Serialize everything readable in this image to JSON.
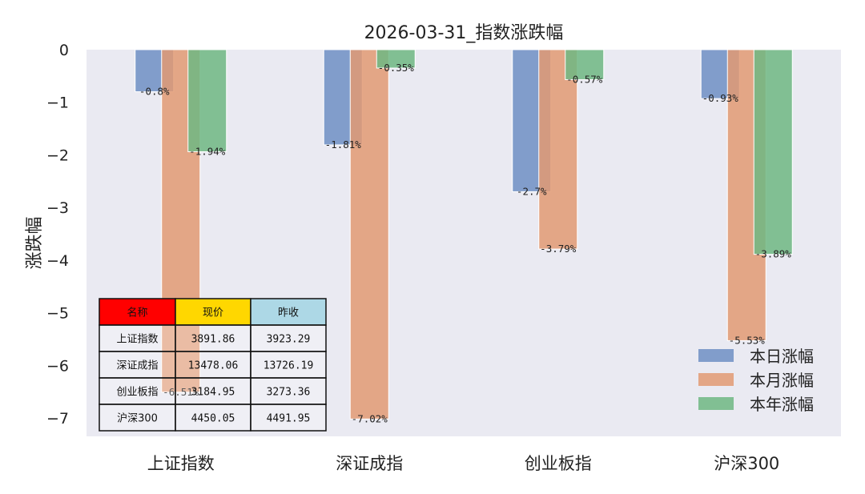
{
  "chart_data": {
    "type": "bar",
    "title": "2026-03-31_指数涨跌幅",
    "xlabel": "",
    "ylabel": "涨跌幅",
    "ylim": [
      -7.35,
      0
    ],
    "yticks": [
      0,
      -1,
      -2,
      -3,
      -4,
      -5,
      -6,
      -7
    ],
    "ytick_labels": [
      "0",
      "−1",
      "−2",
      "−3",
      "−4",
      "−5",
      "−6",
      "−7"
    ],
    "categories": [
      "上证指数",
      "深证成指",
      "创业板指",
      "沪深300"
    ],
    "series": [
      {
        "name": "本日涨幅",
        "color": "#6F8FC4",
        "values": [
          -0.8,
          -1.81,
          -2.7,
          -0.93
        ],
        "labels": [
          "-0.8%",
          "-1.81%",
          "-2.7%",
          "-0.93%"
        ]
      },
      {
        "name": "本月涨幅",
        "color": "#E29A73",
        "values": [
          -6.51,
          -7.02,
          -3.79,
          -5.53
        ],
        "labels": [
          "-6.51%",
          "-7.02%",
          "-3.79%",
          "-5.53%"
        ]
      },
      {
        "name": "本年涨幅",
        "color": "#6FB783",
        "values": [
          -1.94,
          -0.35,
          -0.57,
          -3.89
        ],
        "labels": [
          "-1.94%",
          "-0.35%",
          "-0.57%",
          "-3.89%"
        ]
      }
    ],
    "legend_position": "bottom-right",
    "grid": false,
    "background": "#EAEAF2"
  },
  "table": {
    "headers": [
      "名称",
      "现价",
      "昨收"
    ],
    "header_colors": [
      "#FF0000",
      "#FFD700",
      "#ADD8E6"
    ],
    "rows": [
      [
        "上证指数",
        "3891.86",
        "3923.29"
      ],
      [
        "深证成指",
        "13478.06",
        "13726.19"
      ],
      [
        "创业板指",
        "3184.95",
        "3273.36"
      ],
      [
        "沪深300",
        "4450.05",
        "4491.95"
      ]
    ]
  }
}
